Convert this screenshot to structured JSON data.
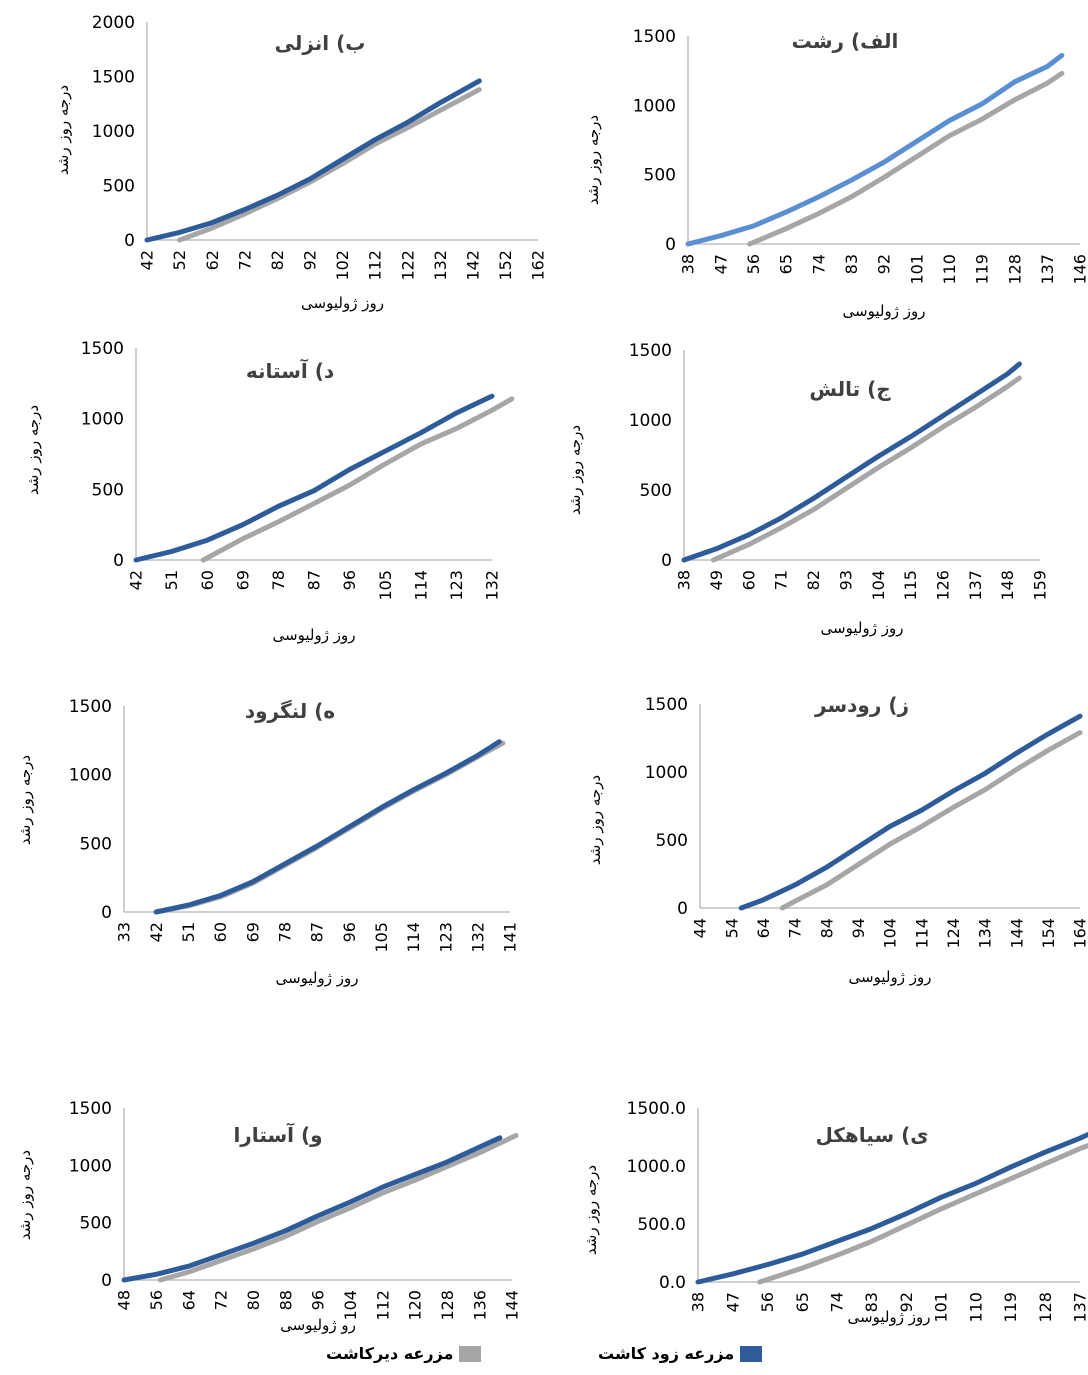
{
  "legend": {
    "early_label": "مزرعه زود کاشت",
    "late_label": "مزرعه دیرکاشت",
    "early_color": "#2E5C9A",
    "late_color": "#A6A6A6"
  },
  "chart_data": [
    {
      "type": "line",
      "title": "ب) انزلی",
      "xlabel": "روز ژولیوسی",
      "ylabel": "درجه روز رشد",
      "x_ticks": [
        "42",
        "52",
        "62",
        "72",
        "82",
        "92",
        "102",
        "112",
        "122",
        "132",
        "142",
        "152",
        "162"
      ],
      "y_ticks": [
        "0",
        "500",
        "1000",
        "1500",
        "2000"
      ],
      "ylim": [
        0,
        2000
      ],
      "series": [
        {
          "name": "مزرعه زود کاشت",
          "points": [
            [
              42,
              0
            ],
            [
              52,
              70
            ],
            [
              62,
              160
            ],
            [
              72,
              280
            ],
            [
              82,
              410
            ],
            [
              92,
              560
            ],
            [
              102,
              740
            ],
            [
              112,
              920
            ],
            [
              122,
              1080
            ],
            [
              132,
              1260
            ],
            [
              144,
              1460
            ]
          ]
        },
        {
          "name": "مزرعه دیرکاشت",
          "points": [
            [
              52,
              0
            ],
            [
              62,
              110
            ],
            [
              72,
              240
            ],
            [
              82,
              380
            ],
            [
              92,
              530
            ],
            [
              102,
              700
            ],
            [
              112,
              880
            ],
            [
              122,
              1030
            ],
            [
              132,
              1190
            ],
            [
              144,
              1380
            ]
          ]
        }
      ]
    },
    {
      "type": "line",
      "title": "الف) رشت",
      "xlabel": "روز ژولیوسی",
      "ylabel": "درجه روز رشد",
      "x_ticks": [
        "38",
        "47",
        "56",
        "65",
        "74",
        "83",
        "92",
        "101",
        "110",
        "119",
        "128",
        "137",
        "146"
      ],
      "y_ticks": [
        "0",
        "500",
        "1000",
        "1500"
      ],
      "ylim": [
        0,
        1500
      ],
      "series": [
        {
          "name": "مزرعه زود کاشت",
          "color": "#5B8FD4",
          "points": [
            [
              38,
              0
            ],
            [
              47,
              60
            ],
            [
              56,
              130
            ],
            [
              65,
              230
            ],
            [
              74,
              340
            ],
            [
              83,
              460
            ],
            [
              92,
              590
            ],
            [
              101,
              740
            ],
            [
              110,
              890
            ],
            [
              119,
              1010
            ],
            [
              128,
              1170
            ],
            [
              137,
              1280
            ],
            [
              141,
              1360
            ]
          ]
        },
        {
          "name": "مزرعه دیرکاشت",
          "points": [
            [
              55,
              0
            ],
            [
              65,
              110
            ],
            [
              74,
              220
            ],
            [
              83,
              340
            ],
            [
              92,
              480
            ],
            [
              101,
              630
            ],
            [
              110,
              780
            ],
            [
              119,
              900
            ],
            [
              128,
              1040
            ],
            [
              137,
              1160
            ],
            [
              141,
              1230
            ]
          ]
        }
      ]
    },
    {
      "type": "line",
      "title": "د) آستانه",
      "xlabel": "روز ژولیوسی",
      "ylabel": "درجه روز رشد",
      "x_ticks": [
        "42",
        "51",
        "60",
        "69",
        "78",
        "87",
        "96",
        "105",
        "114",
        "123",
        "132"
      ],
      "y_ticks": [
        "0",
        "500",
        "1000",
        "1500"
      ],
      "ylim": [
        0,
        1500
      ],
      "series": [
        {
          "name": "مزرعه زود کاشت",
          "points": [
            [
              42,
              0
            ],
            [
              51,
              60
            ],
            [
              60,
              140
            ],
            [
              69,
              250
            ],
            [
              78,
              380
            ],
            [
              87,
              490
            ],
            [
              96,
              640
            ],
            [
              105,
              770
            ],
            [
              114,
              900
            ],
            [
              123,
              1040
            ],
            [
              132,
              1160
            ]
          ]
        },
        {
          "name": "مزرعه دیرکاشت",
          "points": [
            [
              59,
              0
            ],
            [
              69,
              150
            ],
            [
              78,
              270
            ],
            [
              87,
              400
            ],
            [
              96,
              530
            ],
            [
              105,
              680
            ],
            [
              114,
              820
            ],
            [
              123,
              930
            ],
            [
              132,
              1060
            ],
            [
              137,
              1140
            ]
          ]
        }
      ]
    },
    {
      "type": "line",
      "title": "ج) تالش",
      "xlabel": "روز ژولیوسی",
      "ylabel": "درجه روز رشد",
      "x_ticks": [
        "38",
        "49",
        "60",
        "71",
        "82",
        "93",
        "104",
        "115",
        "126",
        "137",
        "148",
        "159"
      ],
      "y_ticks": [
        "0",
        "500",
        "1000",
        "1500"
      ],
      "ylim": [
        0,
        1500
      ],
      "series": [
        {
          "name": "مزرعه زود کاشت",
          "points": [
            [
              38,
              0
            ],
            [
              49,
              80
            ],
            [
              60,
              180
            ],
            [
              71,
              300
            ],
            [
              82,
              440
            ],
            [
              93,
              590
            ],
            [
              104,
              740
            ],
            [
              115,
              880
            ],
            [
              126,
              1030
            ],
            [
              137,
              1180
            ],
            [
              148,
              1330
            ],
            [
              152,
              1400
            ]
          ]
        },
        {
          "name": "مزرعه دیرکاشت",
          "points": [
            [
              48,
              0
            ],
            [
              60,
              110
            ],
            [
              71,
              230
            ],
            [
              82,
              360
            ],
            [
              93,
              510
            ],
            [
              104,
              660
            ],
            [
              115,
              800
            ],
            [
              126,
              950
            ],
            [
              137,
              1090
            ],
            [
              148,
              1240
            ],
            [
              152,
              1300
            ]
          ]
        }
      ]
    },
    {
      "type": "line",
      "title": "ه) لنگرود",
      "xlabel": "روز ژولیوسی",
      "ylabel": "درجه روز رشد",
      "x_ticks": [
        "33",
        "42",
        "51",
        "60",
        "69",
        "78",
        "87",
        "96",
        "105",
        "114",
        "123",
        "132",
        "141"
      ],
      "y_ticks": [
        "0",
        "500",
        "1000",
        "1500"
      ],
      "ylim": [
        0,
        1500
      ],
      "series": [
        {
          "name": "مزرعه زود کاشت",
          "points": [
            [
              42,
              0
            ],
            [
              51,
              50
            ],
            [
              60,
              120
            ],
            [
              69,
              220
            ],
            [
              78,
              350
            ],
            [
              87,
              480
            ],
            [
              96,
              620
            ],
            [
              105,
              760
            ],
            [
              114,
              890
            ],
            [
              123,
              1010
            ],
            [
              132,
              1140
            ],
            [
              138,
              1240
            ]
          ]
        },
        {
          "name": "مزرعه دیرکاشت",
          "points": [
            [
              42,
              0
            ],
            [
              51,
              45
            ],
            [
              60,
              110
            ],
            [
              69,
              210
            ],
            [
              78,
              340
            ],
            [
              87,
              470
            ],
            [
              96,
              610
            ],
            [
              105,
              750
            ],
            [
              114,
              880
            ],
            [
              123,
              1000
            ],
            [
              132,
              1130
            ],
            [
              139,
              1230
            ]
          ]
        }
      ]
    },
    {
      "type": "line",
      "title": "ز) رودسر",
      "xlabel": "روز ژولیوسی",
      "ylabel": "درجه روز رشد",
      "x_ticks": [
        "44",
        "54",
        "64",
        "74",
        "84",
        "94",
        "104",
        "114",
        "124",
        "134",
        "144",
        "154",
        "164"
      ],
      "y_ticks": [
        "0",
        "500",
        "1000",
        "1500"
      ],
      "ylim": [
        0,
        1500
      ],
      "series": [
        {
          "name": "مزرعه زود کاشت",
          "points": [
            [
              57,
              0
            ],
            [
              64,
              60
            ],
            [
              74,
              170
            ],
            [
              84,
              300
            ],
            [
              94,
              450
            ],
            [
              104,
              600
            ],
            [
              114,
              720
            ],
            [
              124,
              860
            ],
            [
              134,
              990
            ],
            [
              144,
              1140
            ],
            [
              154,
              1280
            ],
            [
              164,
              1410
            ]
          ]
        },
        {
          "name": "مزرعه دیرکاشت",
          "points": [
            [
              70,
              0
            ],
            [
              74,
              50
            ],
            [
              84,
              170
            ],
            [
              94,
              320
            ],
            [
              104,
              470
            ],
            [
              114,
              600
            ],
            [
              124,
              740
            ],
            [
              134,
              870
            ],
            [
              144,
              1020
            ],
            [
              154,
              1160
            ],
            [
              164,
              1290
            ]
          ]
        }
      ]
    },
    {
      "type": "line",
      "title": "و) آستارا",
      "xlabel": "رو ژولیوسی",
      "ylabel": "درجه روز رشد",
      "x_ticks": [
        "48",
        "56",
        "64",
        "72",
        "80",
        "88",
        "96",
        "104",
        "112",
        "120",
        "128",
        "136",
        "144"
      ],
      "y_ticks": [
        "0",
        "500",
        "1000",
        "1500"
      ],
      "ylim": [
        0,
        1500
      ],
      "series": [
        {
          "name": "مزرعه زود کاشت",
          "points": [
            [
              48,
              0
            ],
            [
              56,
              50
            ],
            [
              64,
              120
            ],
            [
              72,
              220
            ],
            [
              80,
              320
            ],
            [
              88,
              430
            ],
            [
              96,
              560
            ],
            [
              104,
              680
            ],
            [
              112,
              810
            ],
            [
              120,
              920
            ],
            [
              128,
              1030
            ],
            [
              136,
              1160
            ],
            [
              141,
              1240
            ]
          ]
        },
        {
          "name": "مزرعه دیرکاشت",
          "points": [
            [
              57,
              0
            ],
            [
              64,
              70
            ],
            [
              72,
              170
            ],
            [
              80,
              270
            ],
            [
              88,
              380
            ],
            [
              96,
              510
            ],
            [
              104,
              630
            ],
            [
              112,
              760
            ],
            [
              120,
              870
            ],
            [
              128,
              990
            ],
            [
              136,
              1110
            ],
            [
              145,
              1260
            ]
          ]
        }
      ]
    },
    {
      "type": "line",
      "title": "ی) سیاهکل",
      "xlabel": "روز ژولیوسی",
      "ylabel": "درجه روز رشد",
      "x_ticks": [
        "38",
        "47",
        "56",
        "65",
        "74",
        "83",
        "92",
        "101",
        "110",
        "119",
        "128",
        "137"
      ],
      "y_ticks": [
        "0.0",
        "500.0",
        "1000.0",
        "1500.0"
      ],
      "ylim": [
        0,
        1500
      ],
      "series": [
        {
          "name": "مزرعه زود کاشت",
          "points": [
            [
              38,
              0
            ],
            [
              47,
              70
            ],
            [
              56,
              150
            ],
            [
              65,
              240
            ],
            [
              74,
              350
            ],
            [
              83,
              460
            ],
            [
              92,
              590
            ],
            [
              101,
              730
            ],
            [
              110,
              850
            ],
            [
              119,
              990
            ],
            [
              128,
              1120
            ],
            [
              137,
              1240
            ],
            [
              141,
              1300
            ]
          ]
        },
        {
          "name": "مزرعه دیرکاشت",
          "points": [
            [
              54,
              0
            ],
            [
              65,
              120
            ],
            [
              74,
              230
            ],
            [
              83,
              350
            ],
            [
              92,
              490
            ],
            [
              101,
              630
            ],
            [
              110,
              760
            ],
            [
              119,
              890
            ],
            [
              128,
              1020
            ],
            [
              137,
              1150
            ],
            [
              144,
              1240
            ]
          ]
        }
      ]
    }
  ]
}
